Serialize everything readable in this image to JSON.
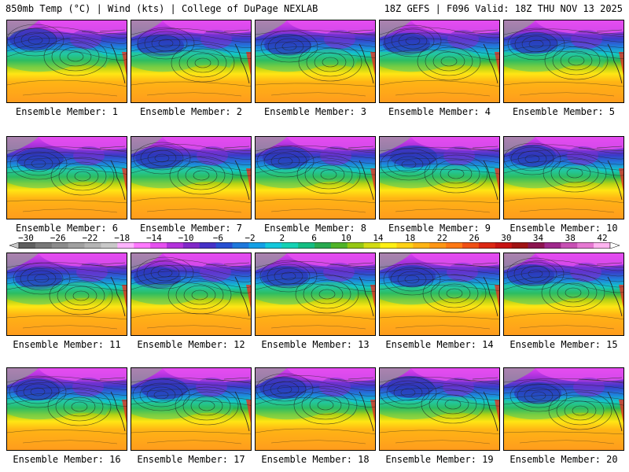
{
  "header": {
    "left": "850mb Temp (°C) | Wind (kts) | College of DuPage NEXLAB",
    "right": "18Z GEFS | F096 Valid: 18Z THU NOV 13 2025"
  },
  "panels": [
    {
      "label": "Ensemble Member: 1"
    },
    {
      "label": "Ensemble Member: 2"
    },
    {
      "label": "Ensemble Member: 3"
    },
    {
      "label": "Ensemble Member: 4"
    },
    {
      "label": "Ensemble Member: 5"
    },
    {
      "label": "Ensemble Member: 6"
    },
    {
      "label": "Ensemble Member: 7"
    },
    {
      "label": "Ensemble Member: 8"
    },
    {
      "label": "Ensemble Member: 9"
    },
    {
      "label": "Ensemble Member: 10"
    },
    {
      "label": "Ensemble Member: 11"
    },
    {
      "label": "Ensemble Member: 12"
    },
    {
      "label": "Ensemble Member: 13"
    },
    {
      "label": "Ensemble Member: 14"
    },
    {
      "label": "Ensemble Member: 15"
    },
    {
      "label": "Ensemble Member: 16"
    },
    {
      "label": "Ensemble Member: 17"
    },
    {
      "label": "Ensemble Member: 18"
    },
    {
      "label": "Ensemble Member: 19"
    },
    {
      "label": "Ensemble Member: 20"
    }
  ],
  "colorbar": {
    "ticks": [
      "−30",
      "−26",
      "−22",
      "−18",
      "−14",
      "−10",
      "−6",
      "−2",
      "2",
      "6",
      "10",
      "14",
      "18",
      "22",
      "26",
      "30",
      "34",
      "38",
      "42"
    ],
    "colors": [
      "#606060",
      "#787878",
      "#8c8c8c",
      "#a0a0a0",
      "#b4b4b4",
      "#c8c8c8",
      "#ffb4ff",
      "#ff78ff",
      "#e650f0",
      "#b432dc",
      "#8228c8",
      "#4632c8",
      "#2850d2",
      "#1e78dc",
      "#14a0e6",
      "#14c8dc",
      "#14d2b4",
      "#14be82",
      "#28aa50",
      "#50b428",
      "#96c814",
      "#d2dc14",
      "#fff014",
      "#ffd214",
      "#ffb414",
      "#ff9614",
      "#ff7814",
      "#f05014",
      "#dc2814",
      "#c81414",
      "#a01414",
      "#8c1450",
      "#a0288c",
      "#c850b4",
      "#e678d2",
      "#ffb4f0"
    ]
  }
}
